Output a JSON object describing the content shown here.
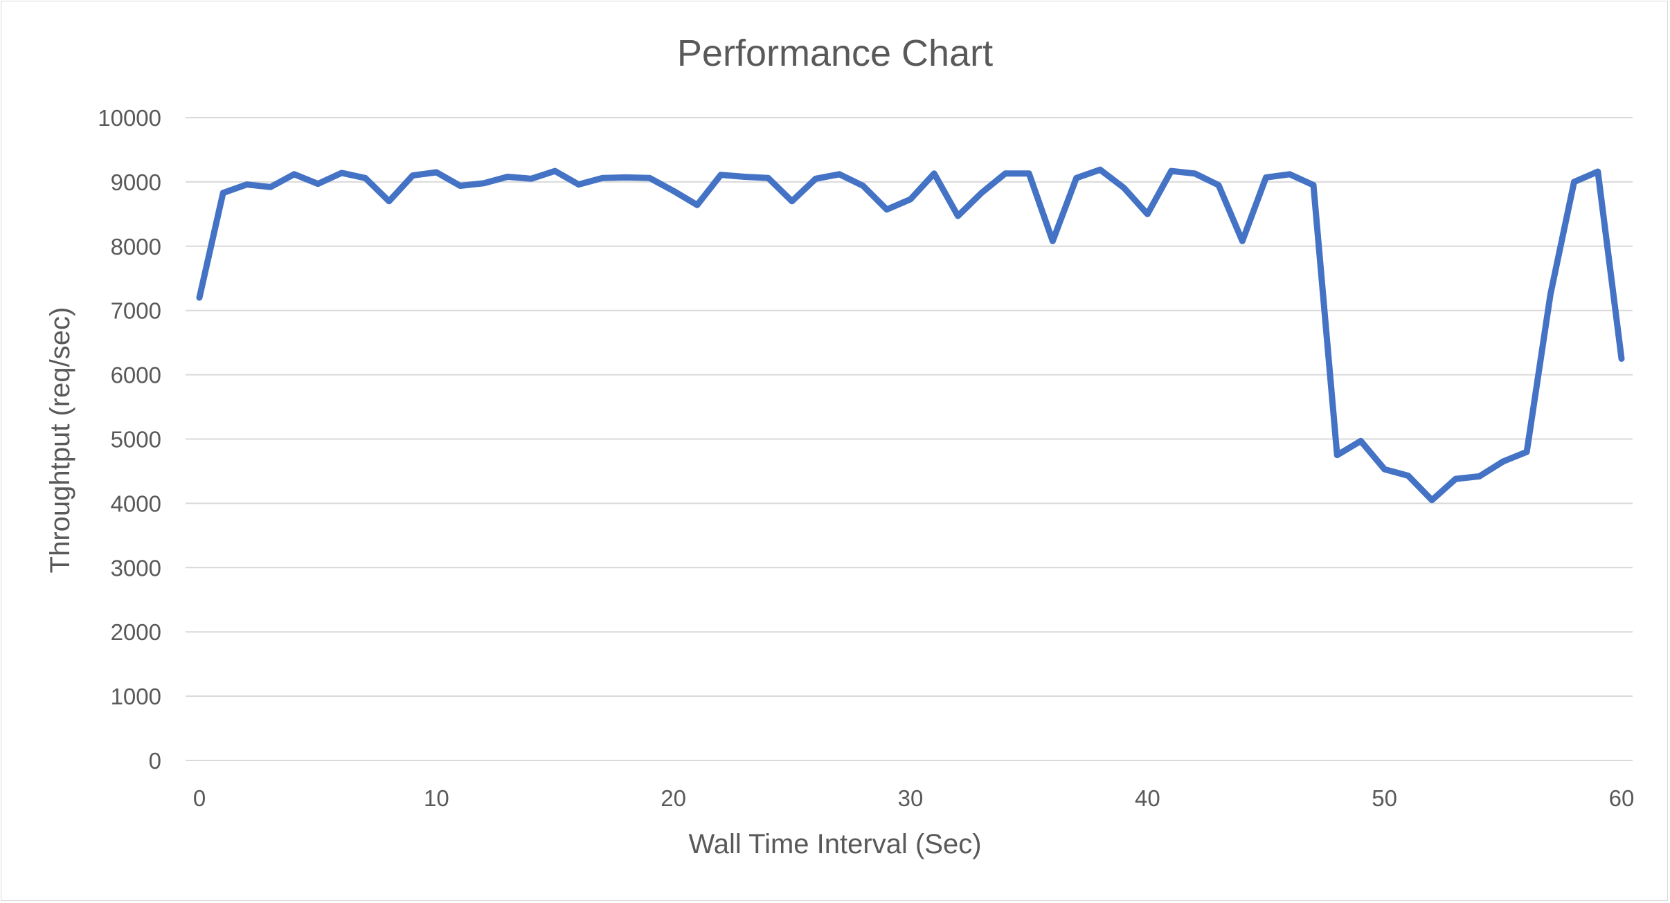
{
  "chart_data": {
    "type": "line",
    "title": "Performance Chart",
    "xlabel": "Wall Time Interval (Sec)",
    "ylabel": "Throughtput (req/sec)",
    "xlim": [
      0,
      60
    ],
    "ylim": [
      0,
      10000
    ],
    "x_ticks": [
      0,
      10,
      20,
      30,
      40,
      50,
      60
    ],
    "y_ticks": [
      0,
      1000,
      2000,
      3000,
      4000,
      5000,
      6000,
      7000,
      8000,
      9000,
      10000
    ],
    "grid": "horizontal",
    "legend": "none",
    "series": [
      {
        "color": "#4472c4",
        "x": [
          0,
          1,
          2,
          3,
          4,
          5,
          6,
          7,
          8,
          9,
          10,
          11,
          12,
          13,
          14,
          15,
          16,
          17,
          18,
          19,
          20,
          21,
          22,
          23,
          24,
          25,
          26,
          27,
          28,
          29,
          30,
          31,
          32,
          33,
          34,
          35,
          36,
          37,
          38,
          39,
          40,
          41,
          42,
          43,
          44,
          45,
          46,
          47,
          48,
          49,
          50,
          51,
          52,
          53,
          54,
          55,
          56,
          57,
          58,
          59,
          60
        ],
        "values": [
          7200,
          8830,
          8960,
          8920,
          9120,
          8970,
          9140,
          9060,
          8700,
          9100,
          9150,
          8940,
          8980,
          9080,
          9050,
          9170,
          8960,
          9060,
          9070,
          9060,
          8860,
          8640,
          9110,
          9080,
          9060,
          8700,
          9050,
          9120,
          8940,
          8570,
          8730,
          9130,
          8470,
          8830,
          9130,
          9130,
          8080,
          9060,
          9190,
          8910,
          8500,
          9170,
          9130,
          8950,
          8080,
          9070,
          9120,
          8950,
          4750,
          4970,
          4530,
          4430,
          4050,
          4380,
          4420,
          4650,
          4800,
          7250,
          9000,
          9160,
          6250
        ]
      }
    ]
  }
}
